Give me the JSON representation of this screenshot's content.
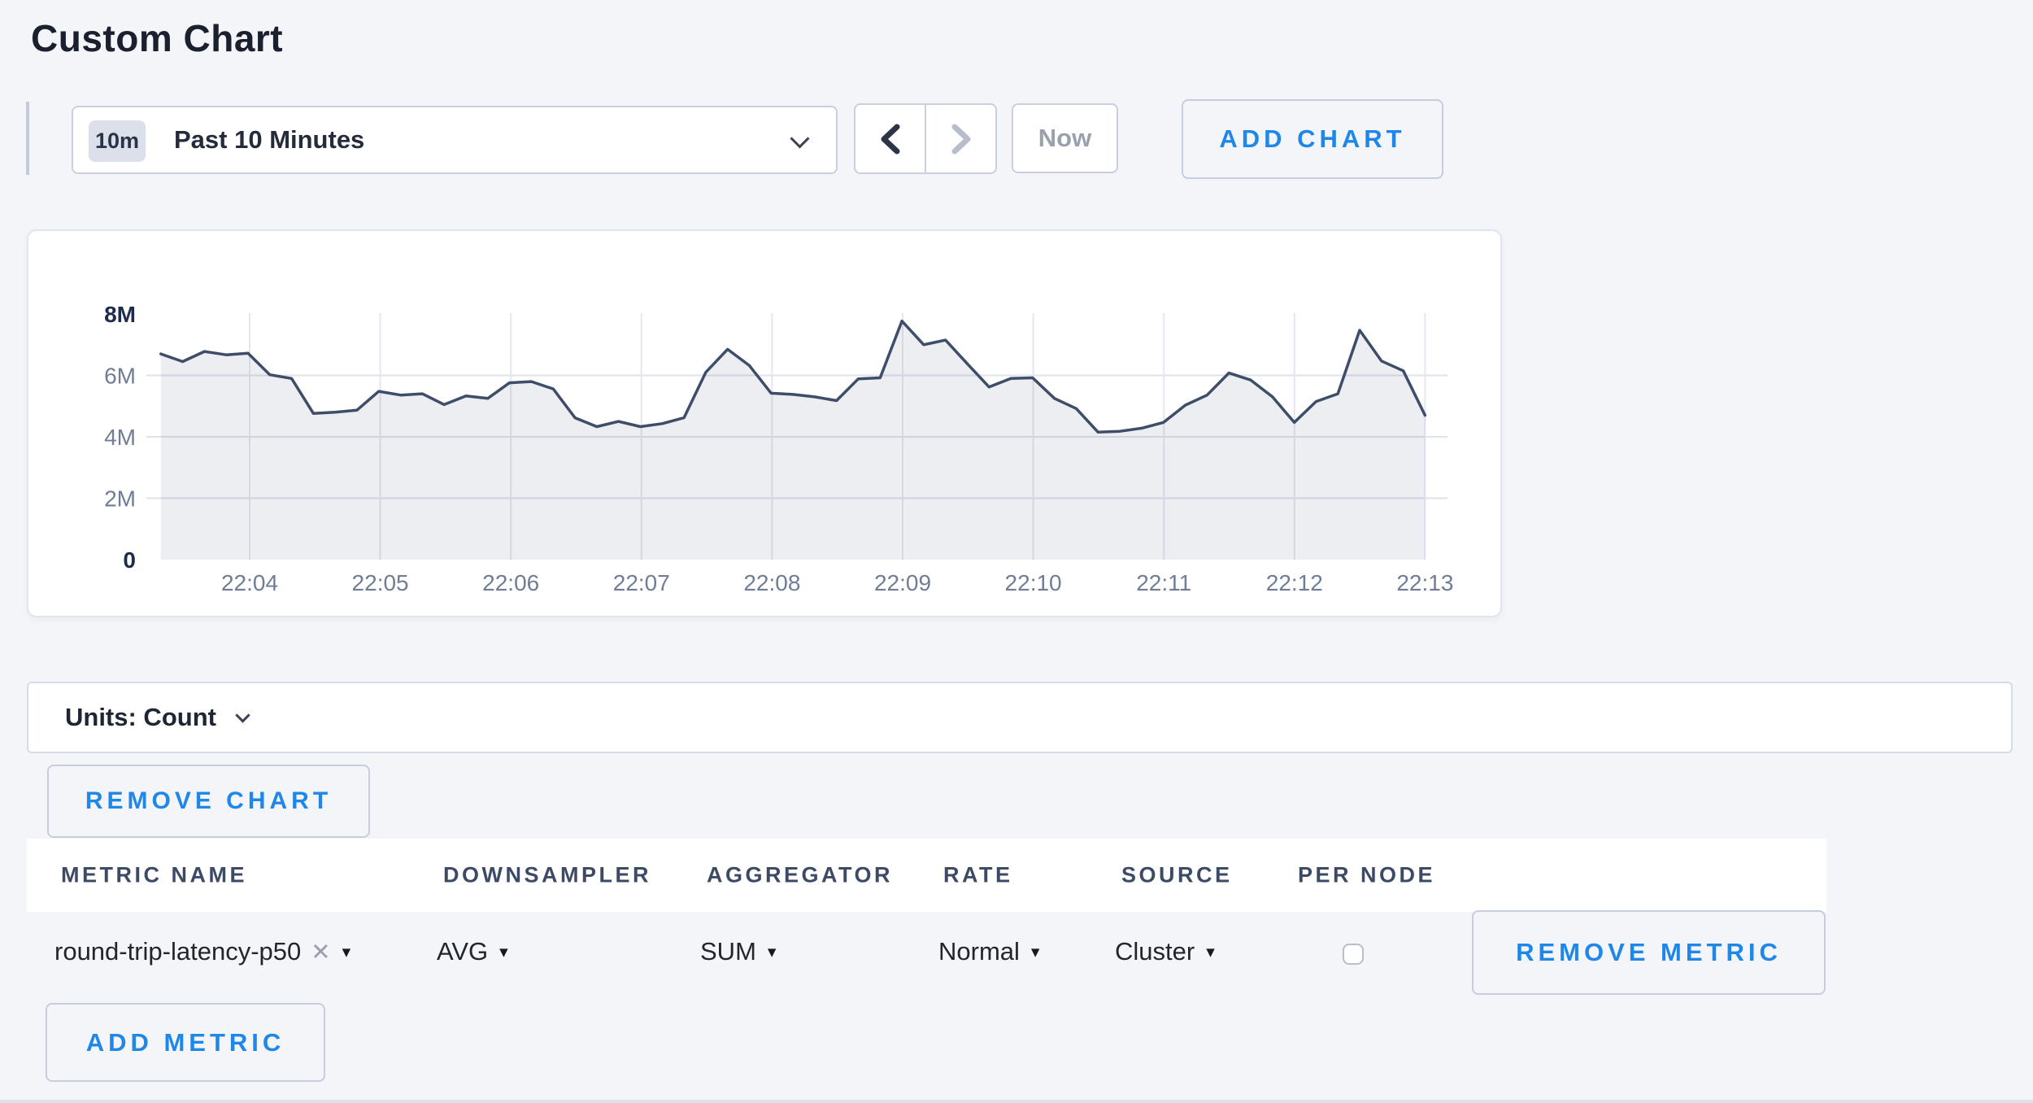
{
  "page": {
    "title": "Custom Chart"
  },
  "toolbar": {
    "time_badge": "10m",
    "time_label": "Past 10 Minutes",
    "now_label": "Now",
    "add_chart_label": "ADD CHART"
  },
  "chart_data": {
    "type": "area",
    "title": "",
    "xlabel": "",
    "ylabel": "",
    "x_ticks": [
      "22:04",
      "22:05",
      "22:06",
      "22:07",
      "22:08",
      "22:09",
      "22:10",
      "22:11",
      "22:12",
      "22:13"
    ],
    "y_ticks": [
      "0",
      "2M",
      "4M",
      "6M",
      "8M"
    ],
    "ylim": [
      0,
      8000000
    ],
    "grid": true,
    "legend": "none",
    "x_start_min": 3.32,
    "x_end_min": 13.0,
    "values_millions": [
      6.7,
      6.45,
      6.78,
      6.67,
      6.72,
      6.02,
      5.9,
      4.76,
      4.8,
      4.87,
      5.48,
      5.36,
      5.4,
      5.05,
      5.33,
      5.25,
      5.76,
      5.8,
      5.56,
      4.62,
      4.33,
      4.5,
      4.33,
      4.43,
      4.62,
      6.1,
      6.85,
      6.32,
      5.42,
      5.38,
      5.3,
      5.18,
      5.89,
      5.92,
      7.77,
      7.0,
      7.15,
      6.38,
      5.62,
      5.9,
      5.92,
      5.25,
      4.92,
      4.15,
      4.18,
      4.28,
      4.47,
      5.03,
      5.36,
      6.08,
      5.85,
      5.3,
      4.47,
      5.15,
      5.4,
      7.47,
      6.47,
      6.15,
      4.7
    ],
    "line_color": "#3e4d68",
    "fill_color": "rgba(57,68,95,0.09)",
    "grid_color_h": "#dde2ec",
    "grid_color_v": "#e3e7f0",
    "tick_color": "#6f7d95",
    "tick_color_bold": "#1d2c4c"
  },
  "units_bar": {
    "label": "Units: Count"
  },
  "chart_actions": {
    "remove_chart_label": "REMOVE CHART"
  },
  "metrics_table": {
    "headers": [
      "METRIC NAME",
      "DOWNSAMPLER",
      "AGGREGATOR",
      "RATE",
      "SOURCE",
      "PER NODE"
    ],
    "rows": [
      {
        "metric_name": "round-trip-latency-p50",
        "downsampler": "AVG",
        "aggregator": "SUM",
        "rate": "Normal",
        "source": "Cluster",
        "per_node_checked": false,
        "remove_label": "REMOVE METRIC"
      }
    ],
    "add_metric_label": "ADD METRIC"
  },
  "icons": {
    "close_icon": "✕",
    "caret_icon": "▾"
  }
}
